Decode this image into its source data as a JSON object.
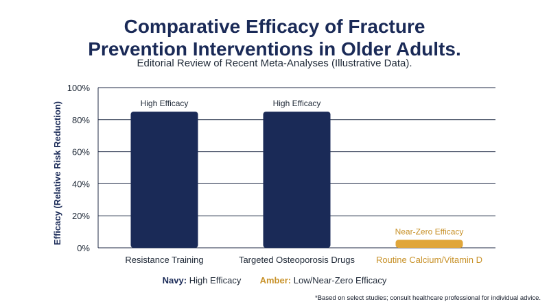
{
  "title_line1": "Comparative Efficacy of Fracture",
  "title_line2": "Prevention Interventions in Older Adults.",
  "subtitle": "Editorial Review of Recent Meta-Analyses (Illustrative Data).",
  "legend": {
    "navy_key": "Navy:",
    "navy_text": "High Efficacy",
    "amber_key": "Amber:",
    "amber_text": "Low/Near-Zero Efficacy"
  },
  "footnote": "*Based on select studies; consult healthcare professional for individual advice.",
  "colors": {
    "navy": "#1a2a57",
    "amber": "#e0a63a",
    "amber_text": "#c8922a",
    "grid": "#1f2a44"
  },
  "chart_data": {
    "type": "bar",
    "categories": [
      "Resistance Training",
      "Targeted Osteoporosis Drugs",
      "Routine Calcium/Vitamin D"
    ],
    "values": [
      85,
      85,
      5
    ],
    "bar_labels": [
      "High Efficacy",
      "High Efficacy",
      "Near-Zero Efficacy"
    ],
    "bar_colors": [
      "#1a2a57",
      "#1a2a57",
      "#e0a63a"
    ],
    "ylabel": "Efficacy (Relative Risk Reduction)",
    "ylim": [
      0,
      100
    ],
    "yticks": [
      0,
      20,
      40,
      60,
      80,
      100
    ],
    "ytick_labels": [
      "0%",
      "20%",
      "40%",
      "60%",
      "80%",
      "100%"
    ],
    "grid": true
  }
}
